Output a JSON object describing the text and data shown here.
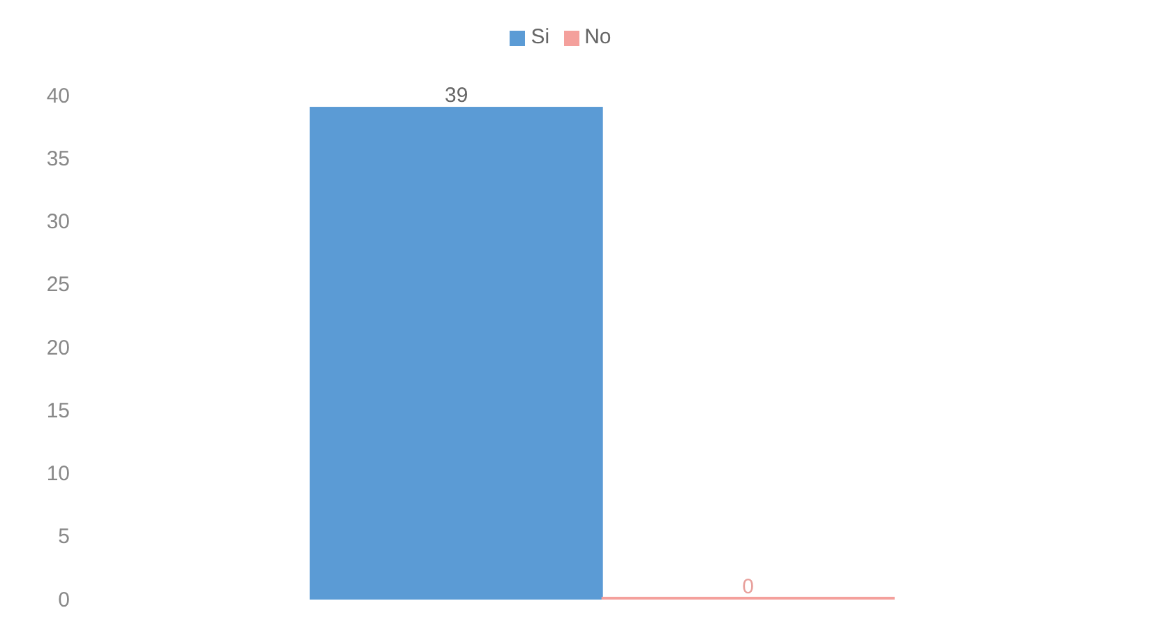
{
  "chart_data": {
    "type": "bar",
    "categories": [
      null
    ],
    "series": [
      {
        "name": "Si",
        "color": "#5b9bd5",
        "values": [
          39
        ]
      },
      {
        "name": "No",
        "color": "#f4a09c",
        "values": [
          0
        ]
      }
    ],
    "ylim": [
      0,
      40
    ],
    "yticks": [
      0,
      5,
      10,
      15,
      20,
      25,
      30,
      35,
      40
    ],
    "data_labels": true,
    "grid": false,
    "legend": "top"
  }
}
